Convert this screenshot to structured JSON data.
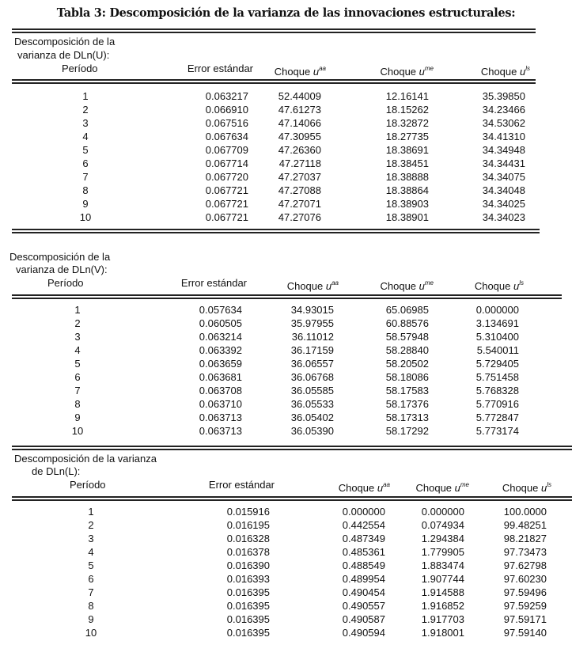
{
  "title": "Tabla 3: Descomposición de la varianza de las innovaciones estructurales:",
  "tables": [
    {
      "heading": [
        "Descomposición de la",
        "varianza de DLn(U):",
        "Período"
      ],
      "columns": [
        "Error estándar",
        "Choque u",
        "Choque u",
        "Choque u"
      ],
      "superscripts": [
        "aa",
        "me",
        "ls"
      ],
      "rows": [
        [
          "1",
          "0.063217",
          "52.44009",
          "12.16141",
          "35.39850"
        ],
        [
          "2",
          "0.066910",
          "47.61273",
          "18.15262",
          "34.23466"
        ],
        [
          "3",
          "0.067516",
          "47.14066",
          "18.32872",
          "34.53062"
        ],
        [
          "4",
          "0.067634",
          "47.30955",
          "18.27735",
          "34.41310"
        ],
        [
          "5",
          "0.067709",
          "47.26360",
          "18.38691",
          "34.34948"
        ],
        [
          "6",
          "0.067714",
          "47.27118",
          "18.38451",
          "34.34431"
        ],
        [
          "7",
          "0.067720",
          "47.27037",
          "18.38888",
          "34.34075"
        ],
        [
          "8",
          "0.067721",
          "47.27088",
          "18.38864",
          "34.34048"
        ],
        [
          "9",
          "0.067721",
          "47.27071",
          "18.38903",
          "34.34025"
        ],
        [
          "10",
          "0.067721",
          "47.27076",
          "18.38901",
          "34.34023"
        ]
      ]
    },
    {
      "heading": [
        "Descomposición de la",
        "varianza de DLn(V):",
        "Período"
      ],
      "columns": [
        "Error estándar",
        "Choque u",
        "Choque u",
        "Choque u"
      ],
      "superscripts": [
        "aa",
        "me",
        "ls"
      ],
      "rows": [
        [
          "1",
          "0.057634",
          "34.93015",
          "65.06985",
          "0.000000"
        ],
        [
          "2",
          "0.060505",
          "35.97955",
          "60.88576",
          "3.134691"
        ],
        [
          "3",
          "0.063214",
          "36.11012",
          "58.57948",
          "5.310400"
        ],
        [
          "4",
          "0.063392",
          "36.17159",
          "58.28840",
          "5.540011"
        ],
        [
          "5",
          "0.063659",
          "36.06557",
          "58.20502",
          "5.729405"
        ],
        [
          "6",
          "0.063681",
          "36.06768",
          "58.18086",
          "5.751458"
        ],
        [
          "7",
          "0.063708",
          "36.05585",
          "58.17583",
          "5.768328"
        ],
        [
          "8",
          "0.063710",
          "36.05533",
          "58.17376",
          "5.770916"
        ],
        [
          "9",
          "0.063713",
          "36.05402",
          "58.17313",
          "5.772847"
        ],
        [
          "10",
          "0.063713",
          "36.05390",
          "58.17292",
          "5.773174"
        ]
      ]
    },
    {
      "heading": [
        "Descomposición de la varianza",
        "de DLn(L):",
        "Período"
      ],
      "columns": [
        "Error estándar",
        "Choque u",
        "Choque u",
        "Choque u"
      ],
      "superscripts": [
        "aa",
        "me",
        "ls"
      ],
      "rows": [
        [
          "1",
          "0.015916",
          "0.000000",
          "0.000000",
          "100.0000"
        ],
        [
          "2",
          "0.016195",
          "0.442554",
          "0.074934",
          "99.48251"
        ],
        [
          "3",
          "0.016328",
          "0.487349",
          "1.294384",
          "98.21827"
        ],
        [
          "4",
          "0.016378",
          "0.485361",
          "1.779905",
          "97.73473"
        ],
        [
          "5",
          "0.016390",
          "0.488549",
          "1.883474",
          "97.62798"
        ],
        [
          "6",
          "0.016393",
          "0.489954",
          "1.907744",
          "97.60230"
        ],
        [
          "7",
          "0.016395",
          "0.490454",
          "1.914588",
          "97.59496"
        ],
        [
          "8",
          "0.016395",
          "0.490557",
          "1.916852",
          "97.59259"
        ],
        [
          "9",
          "0.016395",
          "0.490587",
          "1.917703",
          "97.59171"
        ],
        [
          "10",
          "0.016395",
          "0.490594",
          "1.918001",
          "97.59140"
        ]
      ]
    }
  ]
}
